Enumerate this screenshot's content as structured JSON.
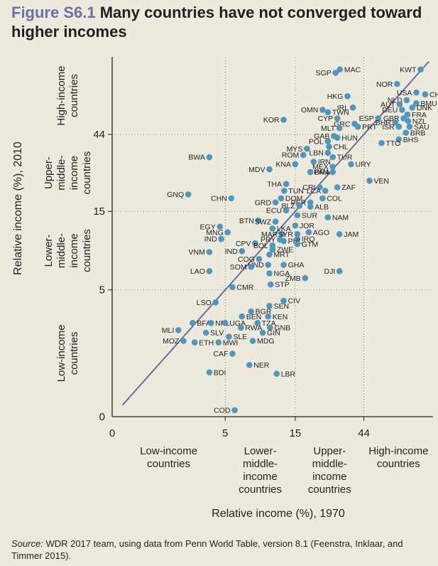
{
  "figure": {
    "label": "Figure S6.1",
    "title": "Many countries have not converged toward higher incomes",
    "source_label": "Source:",
    "source_text": "WDR 2017 team, using data from Penn World Table, version 8.1 (Feenstra, Inklaar, and Timmer 2015)."
  },
  "colors": {
    "point": "#4f97be",
    "line": "#6d6e9e",
    "grid": "#6b6b6b",
    "title_accent": "#6d70a8",
    "background": "#ede9dc"
  },
  "chart_data": {
    "type": "scatter",
    "xlabel": "Relative income (%), 1970",
    "ylabel": "Relative income (%), 2010",
    "scale": "log",
    "xlim": [
      0.85,
      130
    ],
    "ylim": [
      0.85,
      130
    ],
    "x_ticks": [
      {
        "value": 0.85,
        "label": "0"
      },
      {
        "value": 5,
        "label": "5"
      },
      {
        "value": 15,
        "label": "15"
      },
      {
        "value": 44,
        "label": "44"
      }
    ],
    "y_ticks": [
      {
        "value": 0.85,
        "label": "0"
      },
      {
        "value": 5,
        "label": "5"
      },
      {
        "value": 15,
        "label": "15"
      },
      {
        "value": 44,
        "label": "44"
      }
    ],
    "grid": "dotted at 5, 15, 44",
    "reference_line": "45-degree line",
    "x_groups": [
      {
        "text": "Low-income countries",
        "lines": [
          "Low-income",
          "countries"
        ],
        "range": [
          0.85,
          5
        ]
      },
      {
        "text": "Lower-middle-income countries",
        "lines": [
          "Lower-",
          "middle-",
          "income",
          "countries"
        ],
        "range": [
          5,
          15
        ]
      },
      {
        "text": "Upper-middle-income countries",
        "lines": [
          "Upper-",
          "middle-",
          "income",
          "countries"
        ],
        "range": [
          15,
          44
        ]
      },
      {
        "text": "High-income countries",
        "lines": [
          "High-income",
          "countries"
        ],
        "range": [
          44,
          130
        ]
      }
    ],
    "y_groups": [
      {
        "text": "Low-income countries",
        "lines": [
          "Low-income",
          "countries"
        ],
        "range": [
          0.85,
          5
        ]
      },
      {
        "text": "Lower-middle-income countries",
        "lines": [
          "Lower-",
          "middle-",
          "income",
          "countries"
        ],
        "range": [
          5,
          15
        ]
      },
      {
        "text": "Upper-middle-income countries",
        "lines": [
          "Upper-",
          "middle-",
          "income",
          "countries"
        ],
        "range": [
          15,
          44
        ]
      },
      {
        "text": "High-income countries",
        "lines": [
          "High-income",
          "countries"
        ],
        "range": [
          44,
          130
        ]
      }
    ],
    "points": [
      {
        "label": "MAC",
        "x": 30.2,
        "y": 109,
        "pos": "r"
      },
      {
        "label": "KWT",
        "x": 107,
        "y": 109,
        "pos": "l"
      },
      {
        "label": "SGP",
        "x": 28.2,
        "y": 104,
        "pos": "l"
      },
      {
        "label": "NOR",
        "x": 74,
        "y": 89,
        "pos": "l"
      },
      {
        "label": "USA",
        "x": 100,
        "y": 79,
        "pos": "l"
      },
      {
        "label": "CHE",
        "x": 115,
        "y": 77,
        "pos": "r"
      },
      {
        "label": "HKG",
        "x": 34,
        "y": 75,
        "pos": "l"
      },
      {
        "label": "NLD",
        "x": 86,
        "y": 71,
        "pos": "l"
      },
      {
        "label": "BMU",
        "x": 100,
        "y": 68,
        "pos": "r"
      },
      {
        "label": "AUT",
        "x": 77,
        "y": 67,
        "pos": "l"
      },
      {
        "label": "IRL",
        "x": 37,
        "y": 64,
        "pos": "l"
      },
      {
        "label": "DNK",
        "x": 94,
        "y": 64,
        "pos": "r"
      },
      {
        "label": "OMN",
        "x": 23,
        "y": 62,
        "pos": "l"
      },
      {
        "label": "DEU",
        "x": 80,
        "y": 62,
        "pos": "l"
      },
      {
        "label": "TWN",
        "x": 25,
        "y": 60,
        "pos": "r"
      },
      {
        "label": "FRA",
        "x": 87,
        "y": 58,
        "pos": "r"
      },
      {
        "label": "CYP",
        "x": 29,
        "y": 55,
        "pos": "l"
      },
      {
        "label": "ESP",
        "x": 55,
        "y": 55,
        "pos": "l"
      },
      {
        "label": "GBR",
        "x": 82,
        "y": 55,
        "pos": "l"
      },
      {
        "label": "KOR",
        "x": 12.5,
        "y": 54,
        "pos": "l"
      },
      {
        "label": "NZL",
        "x": 88,
        "y": 53,
        "pos": "r"
      },
      {
        "label": "BHR",
        "x": 72,
        "y": 52,
        "pos": "l"
      },
      {
        "label": "GRC",
        "x": 38,
        "y": 51,
        "pos": "l"
      },
      {
        "label": "PRT",
        "x": 40,
        "y": 49,
        "pos": "r"
      },
      {
        "label": "ISR",
        "x": 76,
        "y": 49,
        "pos": "l"
      },
      {
        "label": "SAU",
        "x": 90,
        "y": 49,
        "pos": "r"
      },
      {
        "label": "MLT",
        "x": 30,
        "y": 48,
        "pos": "l"
      },
      {
        "label": "BRB",
        "x": 85,
        "y": 45,
        "pos": "r"
      },
      {
        "label": "GAB",
        "x": 27.5,
        "y": 43,
        "pos": "l"
      },
      {
        "label": "HUN",
        "x": 29,
        "y": 42,
        "pos": "r"
      },
      {
        "label": "BHS",
        "x": 76,
        "y": 41,
        "pos": "r"
      },
      {
        "label": "POL",
        "x": 25,
        "y": 40,
        "pos": "l"
      },
      {
        "label": "TTO",
        "x": 58,
        "y": 39,
        "pos": "r"
      },
      {
        "label": "CHL",
        "x": 25.5,
        "y": 37,
        "pos": "r"
      },
      {
        "label": "MYS",
        "x": 18,
        "y": 36,
        "pos": "l"
      },
      {
        "label": "LBN",
        "x": 25,
        "y": 34,
        "pos": "l"
      },
      {
        "label": "ROM",
        "x": 17,
        "y": 33,
        "pos": "l"
      },
      {
        "label": "BWA",
        "x": 3.9,
        "y": 32,
        "pos": "l"
      },
      {
        "label": "TUR",
        "x": 27,
        "y": 32,
        "pos": "r"
      },
      {
        "label": "IRN",
        "x": 20,
        "y": 30,
        "pos": "r"
      },
      {
        "label": "KNA",
        "x": 15,
        "y": 29,
        "pos": "l"
      },
      {
        "label": "URY",
        "x": 36,
        "y": 29,
        "pos": "r"
      },
      {
        "label": "MEX",
        "x": 27,
        "y": 28,
        "pos": "l"
      },
      {
        "label": "MDV",
        "x": 10,
        "y": 27,
        "pos": "l"
      },
      {
        "label": "BRA",
        "x": 19,
        "y": 26,
        "pos": "r"
      },
      {
        "label": "PAN",
        "x": 27,
        "y": 26,
        "pos": "l"
      },
      {
        "label": "VEN",
        "x": 48,
        "y": 23,
        "pos": "r"
      },
      {
        "label": "THA",
        "x": 13,
        "y": 22,
        "pos": "l"
      },
      {
        "label": "ZAF",
        "x": 29,
        "y": 21,
        "pos": "r"
      },
      {
        "label": "CRI",
        "x": 22,
        "y": 21,
        "pos": "l"
      },
      {
        "label": "TUN",
        "x": 12.6,
        "y": 20,
        "pos": "r"
      },
      {
        "label": "LCA",
        "x": 24,
        "y": 20,
        "pos": "l"
      },
      {
        "label": "GNQ",
        "x": 2.8,
        "y": 19,
        "pos": "l"
      },
      {
        "label": "CHN",
        "x": 5.5,
        "y": 18,
        "pos": "l"
      },
      {
        "label": "DOM",
        "x": 12,
        "y": 18,
        "pos": "r"
      },
      {
        "label": "COL",
        "x": 23,
        "y": 18,
        "pos": "r"
      },
      {
        "label": "PER",
        "x": 19,
        "y": 17,
        "pos": "l"
      },
      {
        "label": "GRD",
        "x": 11,
        "y": 17,
        "pos": "l"
      },
      {
        "label": "BLZ",
        "x": 16,
        "y": 16.2,
        "pos": "l"
      },
      {
        "label": "ALB",
        "x": 19,
        "y": 16,
        "pos": "r"
      },
      {
        "label": "ECU",
        "x": 13,
        "y": 15.2,
        "pos": "l"
      },
      {
        "label": "SUR",
        "x": 15.5,
        "y": 14.2,
        "pos": "r"
      },
      {
        "label": "NAM",
        "x": 25,
        "y": 13.8,
        "pos": "r"
      },
      {
        "label": "BTN",
        "x": 8.4,
        "y": 13.2,
        "pos": "l"
      },
      {
        "label": "SWZ",
        "x": 11,
        "y": 13,
        "pos": "l"
      },
      {
        "label": "JOR",
        "x": 15,
        "y": 12.3,
        "pos": "r"
      },
      {
        "label": "EGY",
        "x": 4.6,
        "y": 12.1,
        "pos": "l"
      },
      {
        "label": "LKA",
        "x": 10.5,
        "y": 11.8,
        "pos": "r"
      },
      {
        "label": "AGO",
        "x": 18.5,
        "y": 11.2,
        "pos": "r"
      },
      {
        "label": "MNG",
        "x": 5.2,
        "y": 11.2,
        "pos": "l"
      },
      {
        "label": "MAR",
        "x": 12.2,
        "y": 10.9,
        "pos": "l"
      },
      {
        "label": "SYR",
        "x": 15.5,
        "y": 10.9,
        "pos": "l"
      },
      {
        "label": "JAM",
        "x": 30,
        "y": 10.9,
        "pos": "r"
      },
      {
        "label": "IRQ",
        "x": 15.5,
        "y": 10.2,
        "pos": "r"
      },
      {
        "label": "IND",
        "x": 4.7,
        "y": 10.2,
        "pos": "l"
      },
      {
        "label": "PRY",
        "x": 11.8,
        "y": 10.1,
        "pos": "l"
      },
      {
        "label": "PHL",
        "x": 12.5,
        "y": 9.9,
        "pos": "r"
      },
      {
        "label": "CPV",
        "x": 8,
        "y": 9.6,
        "pos": "l"
      },
      {
        "label": "GTM",
        "x": 15.5,
        "y": 9.5,
        "pos": "r"
      },
      {
        "label": "BOL",
        "x": 10.5,
        "y": 9.3,
        "pos": "l"
      },
      {
        "label": "ZWE",
        "x": 10.5,
        "y": 8.8,
        "pos": "r"
      },
      {
        "label": "VNM",
        "x": 3.9,
        "y": 8.5,
        "pos": "l"
      },
      {
        "label": "IND",
        "x": 6.5,
        "y": 8.6,
        "pos": "l"
      },
      {
        "label": "MRT",
        "x": 10,
        "y": 8.2,
        "pos": "r"
      },
      {
        "label": "COG",
        "x": 8.5,
        "y": 7.7,
        "pos": "l"
      },
      {
        "label": "HND",
        "x": 9.8,
        "y": 7.1,
        "pos": "l"
      },
      {
        "label": "GHA",
        "x": 12.5,
        "y": 7.1,
        "pos": "r"
      },
      {
        "label": "SOM",
        "x": 7.5,
        "y": 6.9,
        "pos": "l"
      },
      {
        "label": "LAO",
        "x": 3.9,
        "y": 6.5,
        "pos": "l"
      },
      {
        "label": "DJI",
        "x": 30,
        "y": 6.5,
        "pos": "l"
      },
      {
        "label": "NGA",
        "x": 10,
        "y": 6.3,
        "pos": "r"
      },
      {
        "label": "ZMB",
        "x": 17.5,
        "y": 5.9,
        "pos": "l"
      },
      {
        "label": "CMR",
        "x": 5.6,
        "y": 5.2,
        "pos": "r"
      },
      {
        "label": "STP",
        "x": 10.2,
        "y": 5.4,
        "pos": "r"
      },
      {
        "label": "LSO",
        "x": 4.3,
        "y": 4.2,
        "pos": "l"
      },
      {
        "label": "CIV",
        "x": 12.5,
        "y": 4.3,
        "pos": "r"
      },
      {
        "label": "SEN",
        "x": 10,
        "y": 4.0,
        "pos": "r"
      },
      {
        "label": "BGR",
        "x": 7.5,
        "y": 3.7,
        "pos": "r"
      },
      {
        "label": "BEN",
        "x": 6.5,
        "y": 3.45,
        "pos": "r"
      },
      {
        "label": "KEN",
        "x": 9.8,
        "y": 3.45,
        "pos": "r"
      },
      {
        "label": "BFA",
        "x": 3.0,
        "y": 3.15,
        "pos": "r"
      },
      {
        "label": "NPL",
        "x": 4.0,
        "y": 3.15,
        "pos": "r"
      },
      {
        "label": "UGA",
        "x": 5.0,
        "y": 3.15,
        "pos": "r"
      },
      {
        "label": "TZA",
        "x": 8.3,
        "y": 3.15,
        "pos": "r"
      },
      {
        "label": "RWA",
        "x": 6.4,
        "y": 2.95,
        "pos": "r"
      },
      {
        "label": "GNB",
        "x": 10.1,
        "y": 2.95,
        "pos": "r"
      },
      {
        "label": "MLI",
        "x": 2.4,
        "y": 2.85,
        "pos": "l"
      },
      {
        "label": "SLV",
        "x": 3.7,
        "y": 2.75,
        "pos": "r"
      },
      {
        "label": "SLE",
        "x": 5.3,
        "y": 2.6,
        "pos": "r"
      },
      {
        "label": "GIN",
        "x": 9.0,
        "y": 2.75,
        "pos": "r"
      },
      {
        "label": "MOZ",
        "x": 2.6,
        "y": 2.45,
        "pos": "l"
      },
      {
        "label": "MDG",
        "x": 7.7,
        "y": 2.45,
        "pos": "r"
      },
      {
        "label": "ETH",
        "x": 3.1,
        "y": 2.4,
        "pos": "r"
      },
      {
        "label": "MWI",
        "x": 4.5,
        "y": 2.4,
        "pos": "r"
      },
      {
        "label": "CAF",
        "x": 5.6,
        "y": 2.05,
        "pos": "l"
      },
      {
        "label": "NER",
        "x": 7.3,
        "y": 1.75,
        "pos": "r"
      },
      {
        "label": "BDI",
        "x": 3.9,
        "y": 1.58,
        "pos": "r"
      },
      {
        "label": "LBR",
        "x": 11.2,
        "y": 1.55,
        "pos": "r"
      },
      {
        "label": "COD",
        "x": 5.8,
        "y": 0.93,
        "pos": "l"
      }
    ]
  }
}
